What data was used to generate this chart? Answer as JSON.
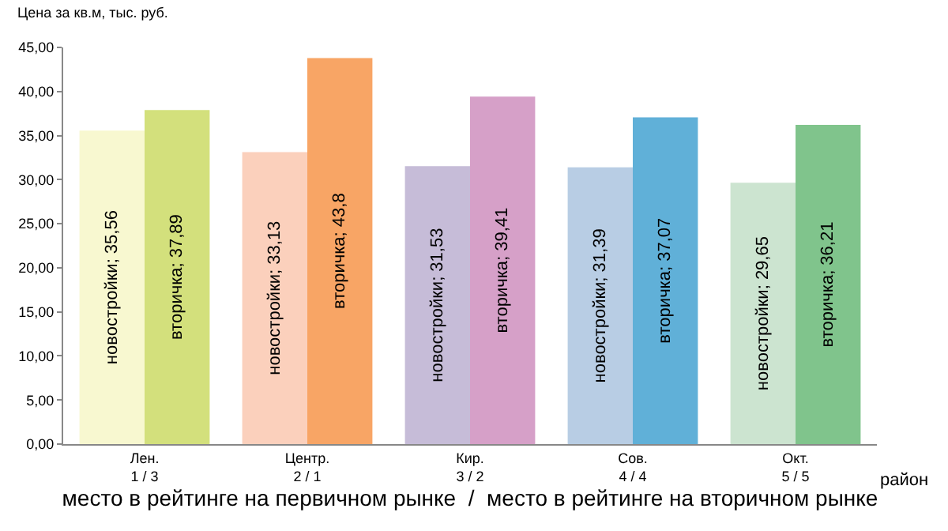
{
  "chart_data": {
    "type": "bar",
    "ylabel": "Цена за кв.м, тыс. руб.",
    "xlabel": "место в рейтинге на первичном рынке  /  место в рейтинге на вторичном рынке",
    "categories": [
      "Лен.\n1 / 3",
      "Центр.\n2 / 1",
      "Кир.\n3 / 2",
      "Сов.\n4 / 4",
      "Окт.\n5 / 5"
    ],
    "series": [
      {
        "colors": [
          "#f8f8d0",
          "#fbd0bc",
          "#c6bcd8",
          "#b8cde4",
          "#cce4d0"
        ],
        "values": [
          35.56,
          33.13,
          31.53,
          31.39,
          29.65
        ],
        "value_labels": [
          "новостройки; 35,56",
          "новостройки; 33,13",
          "новостройки; 31,53",
          "новостройки; 31,39",
          "новостройки; 29,65"
        ]
      },
      {
        "colors": [
          "#d3e07c",
          "#f8a565",
          "#d6a0c8",
          "#60b0d8",
          "#80c48c"
        ],
        "values": [
          37.89,
          43.8,
          39.41,
          37.07,
          36.21
        ],
        "value_labels": [
          "вторичка; 37,89",
          "вторичка; 43,8",
          "вторичка; 39,41",
          "вторичка; 37,07",
          "вторичка; 36,21"
        ]
      }
    ],
    "ylim": [
      0,
      45
    ],
    "yticks": [
      {
        "value": 0,
        "label": "0,00"
      },
      {
        "value": 5,
        "label": "5,00"
      },
      {
        "value": 10,
        "label": "10,00"
      },
      {
        "value": 15,
        "label": "15,00"
      },
      {
        "value": 20,
        "label": "20,00"
      },
      {
        "value": 25,
        "label": "25,00"
      },
      {
        "value": 30,
        "label": "30,00"
      },
      {
        "value": 35,
        "label": "35,00"
      },
      {
        "value": 40,
        "label": "40,00"
      },
      {
        "value": 45,
        "label": "45,00"
      }
    ],
    "annotations": [
      "район"
    ],
    "legend": false
  }
}
